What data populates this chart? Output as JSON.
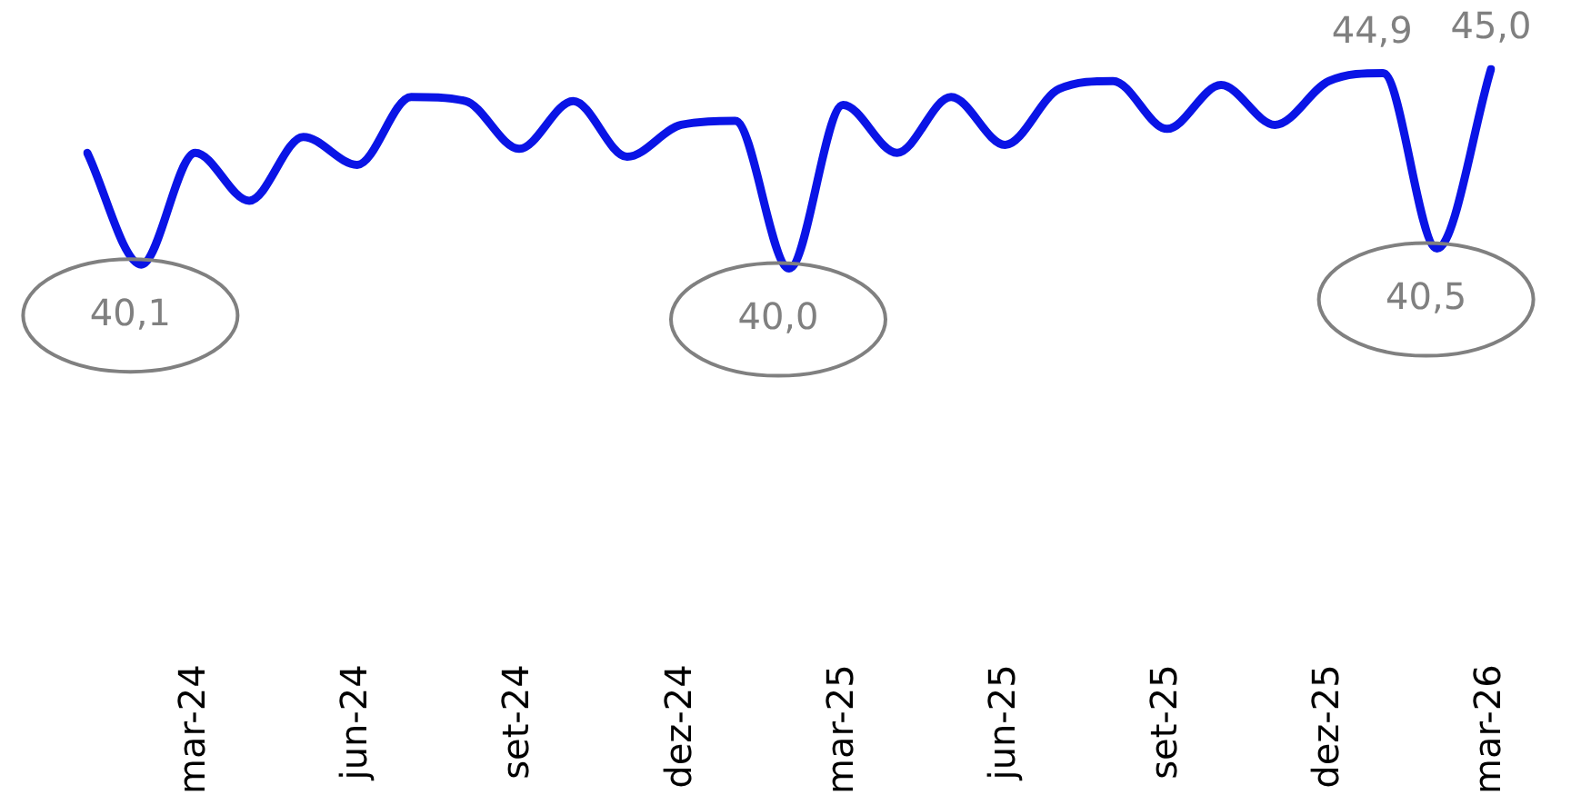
{
  "chart_data": {
    "type": "line",
    "categories": [
      null,
      null,
      "mar-24",
      null,
      null,
      "jun-24",
      null,
      null,
      "set-24",
      null,
      null,
      "dez-24",
      null,
      null,
      "mar-25",
      null,
      null,
      "jun-25",
      null,
      null,
      "set-25",
      null,
      null,
      "dez-25",
      null,
      null,
      "mar-26"
    ],
    "series": [
      {
        "color": "#0a14e6",
        "values": [
          42.9,
          40.1,
          42.9,
          41.7,
          43.3,
          42.6,
          44.3,
          44.2,
          43.0,
          44.2,
          42.8,
          43.6,
          43.7,
          40.0,
          44.1,
          42.9,
          44.3,
          43.1,
          44.5,
          44.7,
          43.5,
          44.6,
          43.6,
          44.7,
          44.9,
          40.5,
          45.0
        ],
        "value_labels": [
          null,
          "40,1",
          null,
          null,
          null,
          null,
          null,
          null,
          null,
          null,
          null,
          null,
          null,
          "40,0",
          null,
          null,
          null,
          null,
          null,
          null,
          null,
          null,
          null,
          null,
          "44,9",
          "40,5",
          "45,0"
        ]
      }
    ],
    "tick_labels": "x",
    "grid": false,
    "legend": false,
    "marker": "none",
    "line_style": "solid"
  }
}
